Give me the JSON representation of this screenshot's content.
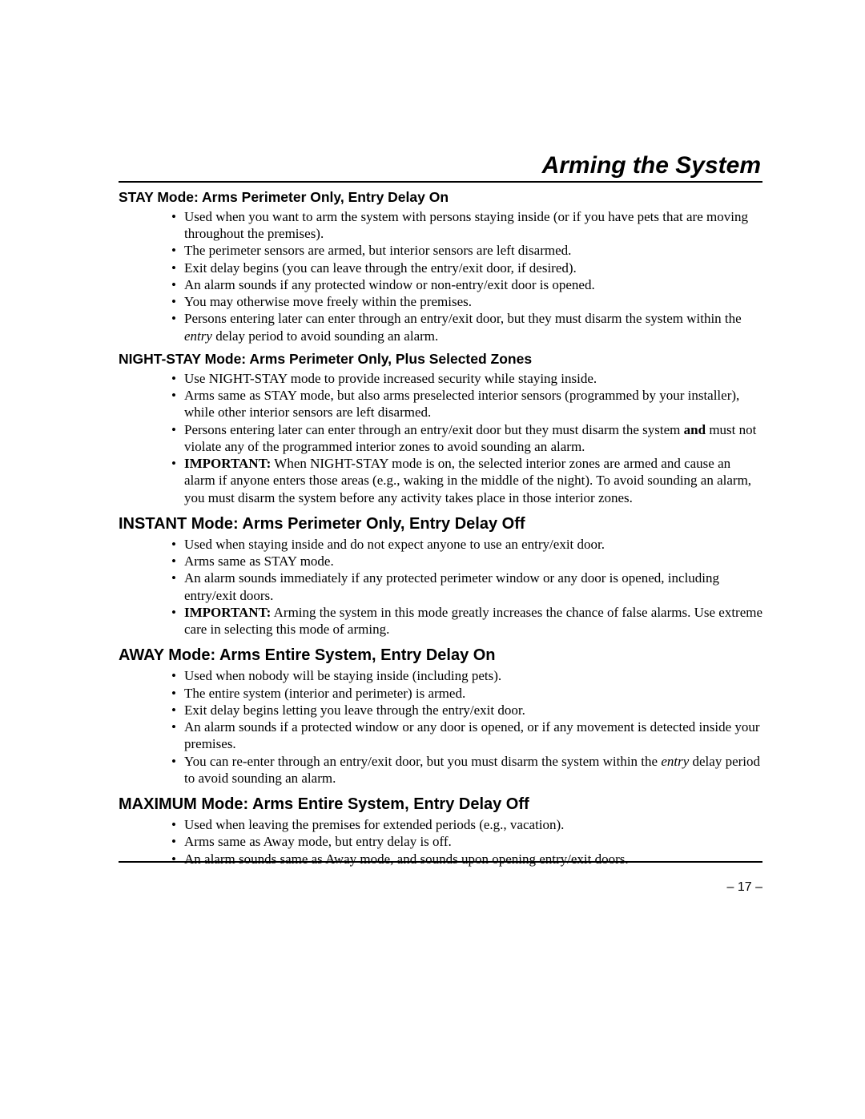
{
  "title": "Arming the System",
  "page_number": "– 17 –",
  "typography": {
    "title_font": "Arial",
    "title_size_pt": 22,
    "title_style": "bold italic",
    "heading_font": "Arial",
    "heading_small_size_pt": 13,
    "heading_large_size_pt": 15,
    "body_font": "Georgia",
    "body_size_pt": 13,
    "text_color": "#000000",
    "background_color": "#ffffff",
    "rule_color": "#000000"
  },
  "sections": [
    {
      "heading": "STAY Mode: Arms Perimeter Only, Entry Delay On",
      "heading_size": "small",
      "items": [
        {
          "text": "Used when you want to arm the system with persons staying inside (or if you have pets that are moving throughout the premises)."
        },
        {
          "text": "The perimeter sensors are armed, but interior sensors are left disarmed."
        },
        {
          "text": "Exit delay begins (you can leave through the entry/exit door, if desired)."
        },
        {
          "text": "An alarm sounds if any protected window or non-entry/exit door is opened."
        },
        {
          "text": "You may otherwise move freely within the premises."
        },
        {
          "parts": [
            {
              "t": "Persons entering later can enter through an entry/exit door, but they must disarm the system within the "
            },
            {
              "t": "entry",
              "style": "italic"
            },
            {
              "t": " delay period to avoid sounding an alarm."
            }
          ]
        }
      ]
    },
    {
      "heading": "NIGHT-STAY Mode: Arms Perimeter Only, Plus Selected Zones",
      "heading_size": "small",
      "items": [
        {
          "text": "Use NIGHT-STAY mode to provide increased security while staying inside."
        },
        {
          "text": "Arms same as STAY mode, but also arms preselected interior sensors (programmed by your installer), while other interior sensors are left disarmed."
        },
        {
          "parts": [
            {
              "t": "Persons entering later can enter through an entry/exit door but they must disarm the system "
            },
            {
              "t": "and",
              "style": "bold"
            },
            {
              "t": " must not violate any of the programmed interior zones to avoid sounding an alarm."
            }
          ]
        },
        {
          "parts": [
            {
              "t": "IMPORTANT:",
              "style": "bold"
            },
            {
              "t": " When NIGHT-STAY mode is on, the selected interior zones are armed and cause an alarm if anyone enters those areas (e.g., waking in the middle of the night). To avoid sounding an alarm, you must disarm the system before any activity takes place in those interior zones."
            }
          ]
        }
      ]
    },
    {
      "heading": "INSTANT Mode: Arms Perimeter Only, Entry Delay Off",
      "heading_size": "large",
      "items": [
        {
          "text": "Used when staying inside and do not expect anyone to use an entry/exit door."
        },
        {
          "text": "Arms same as STAY mode."
        },
        {
          "text": "An alarm sounds immediately if any protected perimeter window or any door is opened, including entry/exit doors."
        },
        {
          "parts": [
            {
              "t": "IMPORTANT:",
              "style": "bold"
            },
            {
              "t": " Arming the system in this mode greatly increases the chance of false alarms. Use extreme care in selecting this mode of arming."
            }
          ]
        }
      ]
    },
    {
      "heading": "AWAY Mode: Arms Entire System, Entry Delay On",
      "heading_size": "large",
      "items": [
        {
          "text": "Used when nobody will be staying inside (including pets)."
        },
        {
          "text": "The entire system (interior and perimeter) is armed."
        },
        {
          "text": "Exit delay begins letting you leave through the entry/exit door."
        },
        {
          "text": "An alarm sounds if a protected window or any door is opened, or if any movement is detected inside your premises."
        },
        {
          "parts": [
            {
              "t": "You can re-enter through an entry/exit door, but you must disarm the system within the "
            },
            {
              "t": "entry",
              "style": "italic"
            },
            {
              "t": " delay period to avoid sounding an alarm."
            }
          ]
        }
      ]
    },
    {
      "heading": "MAXIMUM Mode: Arms Entire System, Entry Delay Off",
      "heading_size": "large",
      "items": [
        {
          "text": "Used when leaving the premises for extended periods (e.g., vacation)."
        },
        {
          "text": "Arms same as Away mode, but entry delay is off."
        },
        {
          "text": "An alarm sounds same as Away mode, and sounds upon opening entry/exit doors."
        }
      ]
    }
  ]
}
